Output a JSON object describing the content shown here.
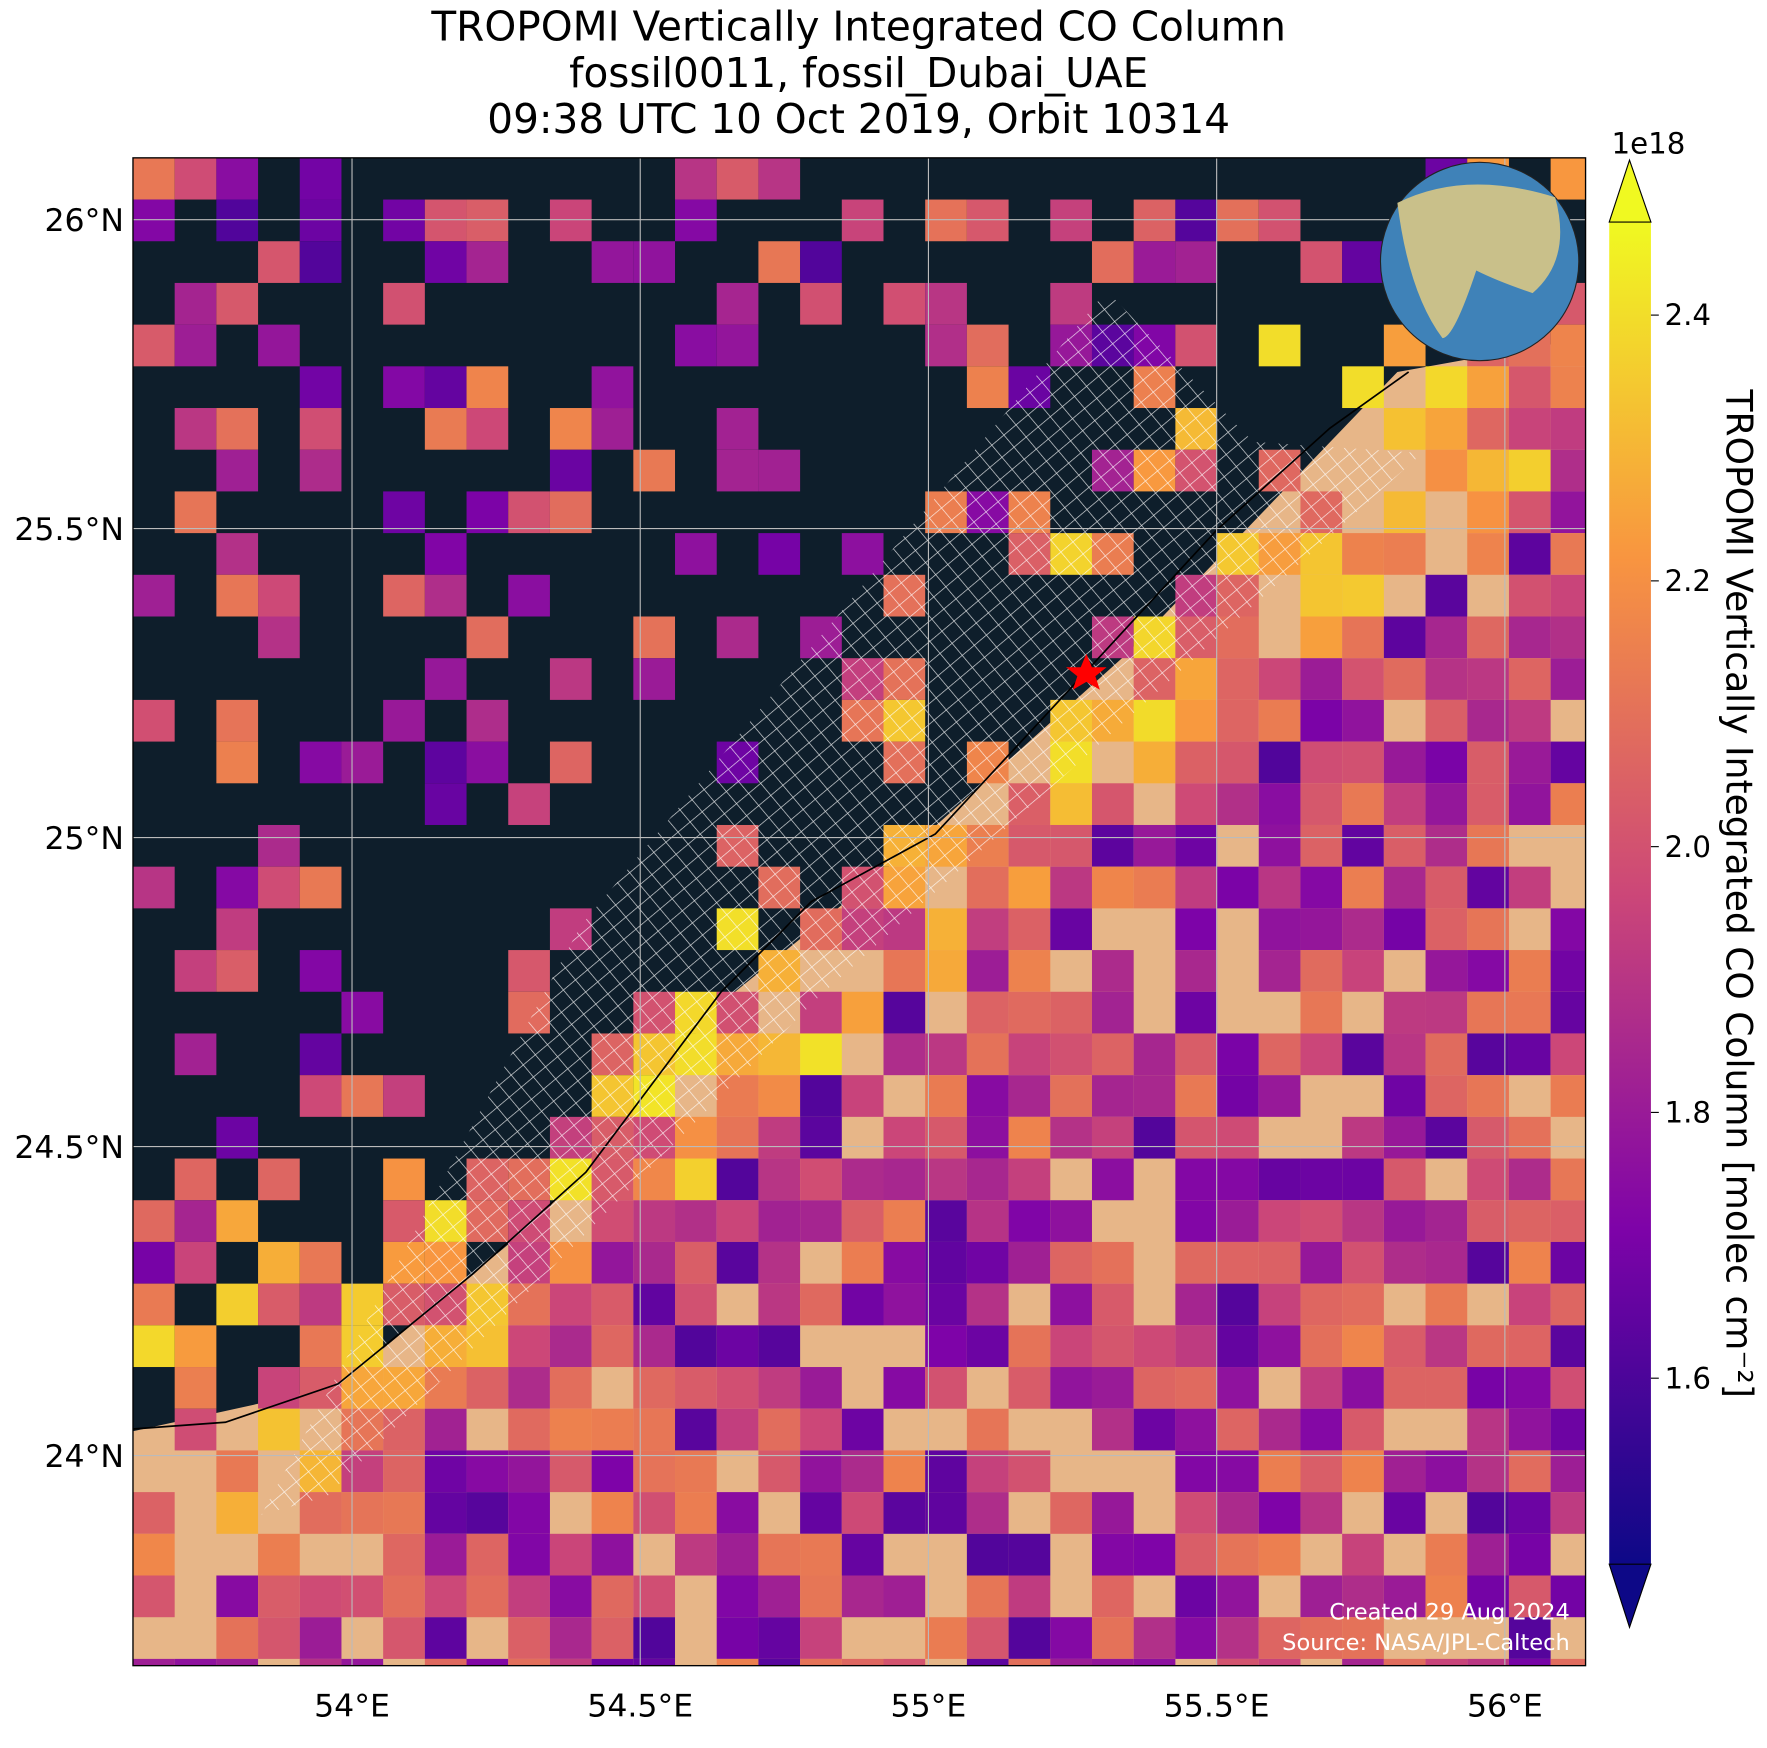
{
  "chart_data": {
    "type": "map",
    "title": [
      "TROPOMI Vertically Integrated CO Column",
      "fossil0011, fossil_Dubai_UAE",
      "09:38 UTC 10 Oct 2019, Orbit 10314"
    ],
    "xlim": [
      53.62,
      56.14
    ],
    "ylim": [
      23.66,
      26.1
    ],
    "xticks": [
      {
        "value": 54,
        "label": "54°E"
      },
      {
        "value": 54.5,
        "label": "54.5°E"
      },
      {
        "value": 55,
        "label": "55°E"
      },
      {
        "value": 55.5,
        "label": "55.5°E"
      },
      {
        "value": 56,
        "label": "56°E"
      }
    ],
    "yticks": [
      {
        "value": 24,
        "label": "24°N"
      },
      {
        "value": 24.5,
        "label": "24.5°N"
      },
      {
        "value": 25,
        "label": "25°N"
      },
      {
        "value": 25.5,
        "label": "25.5°N"
      },
      {
        "value": 26,
        "label": "26°N"
      }
    ],
    "grid": true,
    "colormap": "plasma",
    "colorbar": {
      "label": "TROPOMI Vertically Integrated CO Column [molec cm⁻²]",
      "offset_label": "1e18",
      "lim": [
        1.46,
        2.47
      ],
      "ticks": [
        {
          "value": 1.6,
          "label": "1.6"
        },
        {
          "value": 1.8,
          "label": "1.8"
        },
        {
          "value": 2,
          "label": "2.0"
        },
        {
          "value": 2.2,
          "label": "2.2"
        },
        {
          "value": 2.4,
          "label": "2.4"
        }
      ]
    },
    "annotations": [
      "Created 29 Aug 2024",
      "Source: NASA/JPL-Caltech"
    ]
  }
}
